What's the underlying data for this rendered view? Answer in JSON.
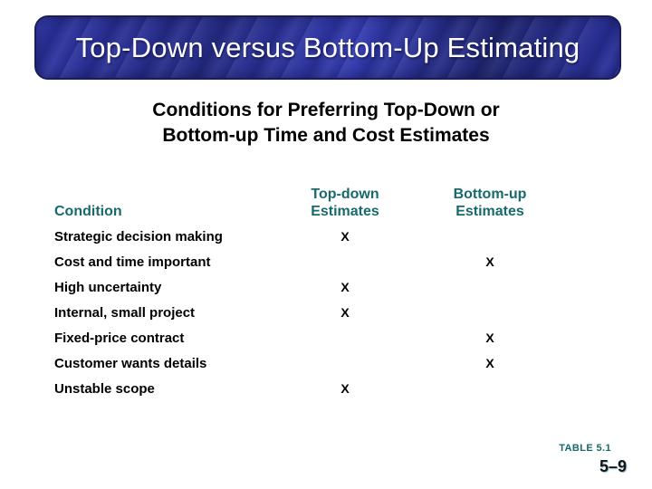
{
  "slide": {
    "title": "Top-Down versus Bottom-Up Estimating",
    "subtitle_line1": "Conditions for Preferring Top-Down or",
    "subtitle_line2": "Bottom-up Time and Cost Estimates",
    "table": {
      "col1_header": "Condition",
      "col2_header_line1": "Top-down",
      "col2_header_line2": "Estimates",
      "col3_header_line1": "Bottom-up",
      "col3_header_line2": "Estimates",
      "rows": [
        {
          "condition": "Strategic decision making",
          "top_down": "X",
          "bottom_up": ""
        },
        {
          "condition": "Cost and time important",
          "top_down": "",
          "bottom_up": "X"
        },
        {
          "condition": "High uncertainty",
          "top_down": "X",
          "bottom_up": ""
        },
        {
          "condition": "Internal, small project",
          "top_down": "X",
          "bottom_up": ""
        },
        {
          "condition": "Fixed-price contract",
          "top_down": "",
          "bottom_up": "X"
        },
        {
          "condition": "Customer wants details",
          "top_down": "",
          "bottom_up": "X"
        },
        {
          "condition": "Unstable scope",
          "top_down": "X",
          "bottom_up": ""
        }
      ]
    },
    "footer": {
      "table_ref": "TABLE 5.1",
      "page_number": "5–9"
    },
    "colors": {
      "title_bar_blue": "#2b32a0",
      "title_bar_border": "#191e5a",
      "title_text": "#ffffff",
      "header_teal": "#17696d",
      "body_text": "#000000",
      "background": "#ffffff"
    }
  }
}
